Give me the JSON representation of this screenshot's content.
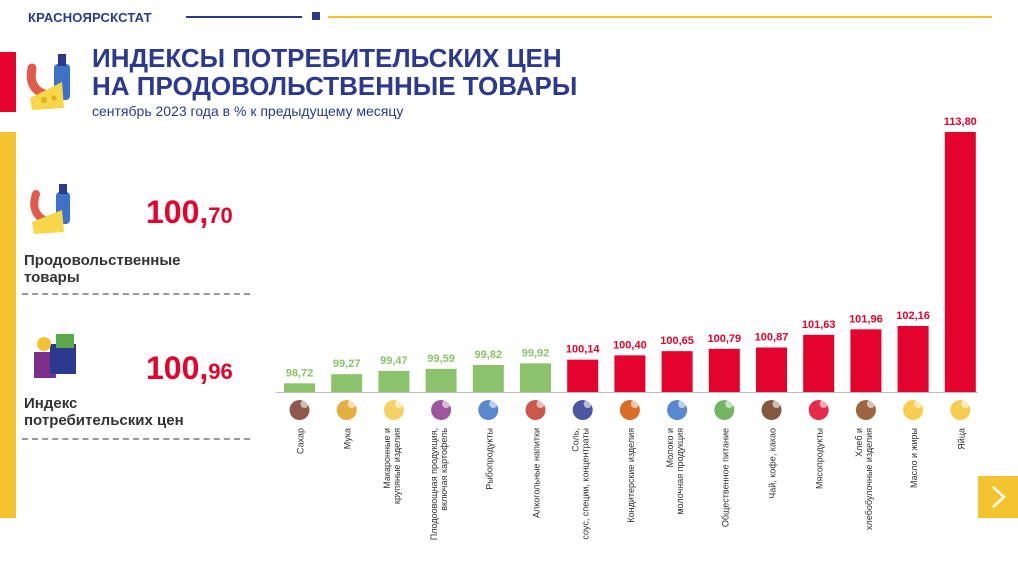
{
  "header": {
    "brand": "КРАСНОЯРСКСТАТ"
  },
  "title_line1": "ИНДЕКСЫ ПОТРЕБИТЕЛЬСКИХ ЦЕН",
  "title_line2": "НА ПРОДОВОЛЬСТВЕННЫЕ ТОВАРЫ",
  "subtitle": "сентябрь 2023 года в % к предыдущему месяцу",
  "kpis": [
    {
      "value_int": "100,",
      "value_dec": "70",
      "label_line1": "Продовольственные",
      "label_line2": "товары",
      "icon": "groceries-icon"
    },
    {
      "value_int": "100,",
      "value_dec": "96",
      "label_line1": "Индекс",
      "label_line2": "потребительских цен",
      "icon": "shopping-box-icon"
    }
  ],
  "colors": {
    "navy": "#2b3a8f",
    "red": "#e3032c",
    "green": "#8cc36a",
    "yellow": "#f4c430"
  },
  "nav": {
    "next_icon": "chevron-right-icon"
  },
  "chart_data": {
    "type": "bar",
    "categories": [
      "Сахар",
      "Мука",
      "Макаронные и крупяные изделия",
      "Плодоовощная продукция, включая картофель",
      "Рыбопродукты",
      "Алкогольные напитки",
      "Соль, соус, специи, концентраты",
      "Кондитерские изделия",
      "Молоко и молочная продукция",
      "Общественное питание",
      "Чай, кофе, какао",
      "Мясопродукты",
      "Хлеб и хлебобулочные изделия",
      "Масло и жиры",
      "Яйца"
    ],
    "values": [
      98.72,
      99.27,
      99.47,
      99.59,
      99.82,
      99.92,
      100.14,
      100.4,
      100.65,
      100.79,
      100.87,
      101.63,
      101.96,
      102.16,
      113.8
    ],
    "value_labels": [
      "98,72",
      "99,27",
      "99,47",
      "99,59",
      "99,82",
      "99,92",
      "100,14",
      "100,40",
      "100,65",
      "100,79",
      "100,87",
      "101,63",
      "101,96",
      "102,16",
      "113,80"
    ],
    "category_icons": [
      "sugar-icon",
      "flour-icon",
      "pasta-icon",
      "vegetables-icon",
      "fish-icon",
      "wine-icon",
      "salt-icon",
      "cake-icon",
      "milk-icon",
      "food-service-icon",
      "coffee-icon",
      "meat-icon",
      "bread-icon",
      "oil-icon",
      "eggs-icon"
    ],
    "threshold": 100,
    "ylim": [
      98.2,
      113.8
    ]
  }
}
